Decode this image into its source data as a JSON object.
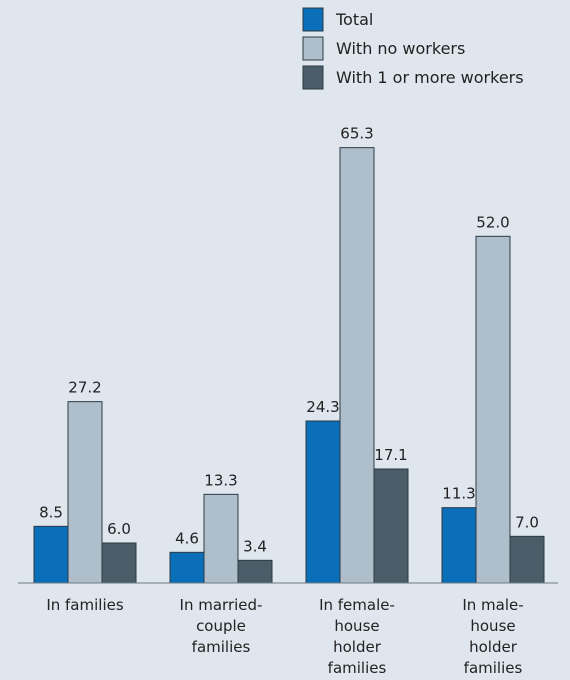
{
  "chart_data": {
    "type": "bar",
    "categories": [
      "In families",
      "In married-couple families",
      "In female-house holder families",
      "In male-house holder families"
    ],
    "category_lines": [
      [
        "In families"
      ],
      [
        "In married-",
        "couple",
        "families"
      ],
      [
        "In female-",
        "house",
        "holder",
        "families"
      ],
      [
        "In male-",
        "house",
        "holder",
        "families"
      ]
    ],
    "series": [
      {
        "name": "Total",
        "values": [
          8.5,
          4.6,
          24.3,
          11.3
        ],
        "color": "#0a6eb8"
      },
      {
        "name": "With no workers",
        "values": [
          27.2,
          13.3,
          65.3,
          52.0
        ],
        "color": "#aebfcb"
      },
      {
        "name": "With 1 or more workers",
        "values": [
          6.0,
          3.4,
          17.1,
          7.0
        ],
        "color": "#4a5d68"
      }
    ],
    "value_labels": [
      [
        "8.5",
        "4.6",
        "24.3",
        "11.3"
      ],
      [
        "27.2",
        "13.3",
        "65.3",
        "52.0"
      ],
      [
        "6.0",
        "3.4",
        "17.1",
        "7.0"
      ]
    ],
    "ylim": [
      0,
      70
    ],
    "grid": false,
    "legend_position": "top-right",
    "title": "",
    "xlabel": "",
    "ylabel": ""
  }
}
